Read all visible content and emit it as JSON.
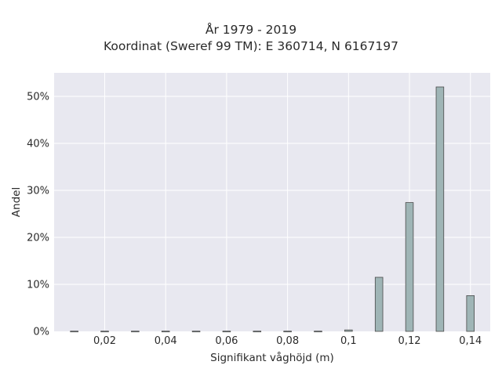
{
  "chart_data": {
    "type": "bar",
    "title": "År 1979 - 2019",
    "subtitle": "Koordinat (Sweref 99 TM): E 360714, N 6167197",
    "xlabel": "Signifikant våghöjd (m)",
    "ylabel": "Andel",
    "x": [
      0.01,
      0.02,
      0.03,
      0.04,
      0.05,
      0.06,
      0.07,
      0.08,
      0.09,
      0.1,
      0.11,
      0.12,
      0.13,
      0.14
    ],
    "values": [
      0.05,
      0.05,
      0.05,
      0.05,
      0.05,
      0.05,
      0.05,
      0.05,
      0.05,
      0.3,
      11.5,
      27.4,
      52.0,
      7.6
    ],
    "xlim": [
      0.0034,
      0.1465
    ],
    "ylim": [
      0,
      55
    ],
    "bar_width": 0.0025,
    "x_ticks": [
      {
        "value": 0.02,
        "label": "0,02"
      },
      {
        "value": 0.04,
        "label": "0,04"
      },
      {
        "value": 0.06,
        "label": "0,06"
      },
      {
        "value": 0.08,
        "label": "0,08"
      },
      {
        "value": 0.1,
        "label": "0,1"
      },
      {
        "value": 0.12,
        "label": "0,12"
      },
      {
        "value": 0.14,
        "label": "0,14"
      }
    ],
    "y_ticks": [
      {
        "value": 0,
        "label": "0%"
      },
      {
        "value": 10,
        "label": "10%"
      },
      {
        "value": 20,
        "label": "20%"
      },
      {
        "value": 30,
        "label": "30%"
      },
      {
        "value": 40,
        "label": "40%"
      },
      {
        "value": 50,
        "label": "50%"
      }
    ],
    "grid": true,
    "colors": {
      "background": "#e8e8f0",
      "bar_fill": "#9fb5b6",
      "bar_stroke": "#4a4a4a",
      "grid": "#ffffff"
    }
  }
}
